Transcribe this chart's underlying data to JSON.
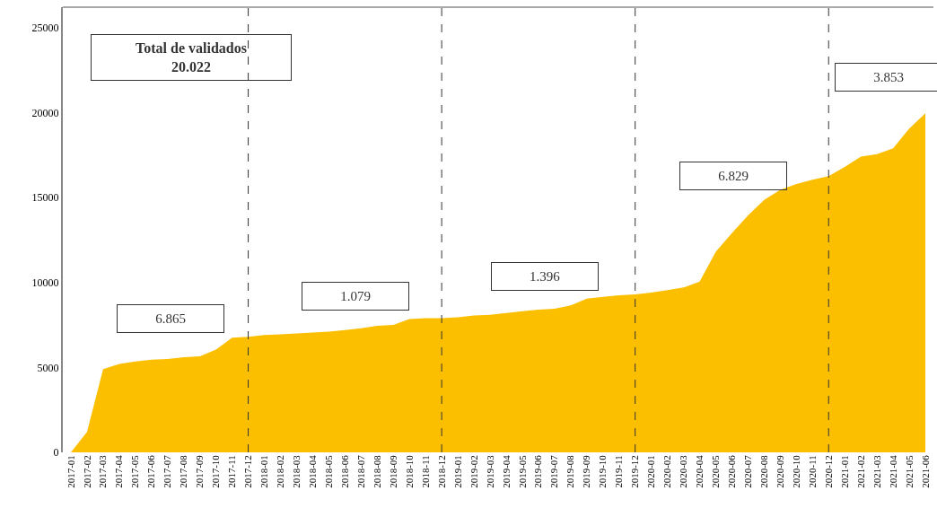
{
  "chart_data": {
    "type": "area",
    "categories": [
      "2017-01",
      "2017-02",
      "2017-03",
      "2017-04",
      "2017-05",
      "2017-06",
      "2017-07",
      "2017-08",
      "2017-09",
      "2017-10",
      "2017-11",
      "2017-12",
      "2018-01",
      "2018-02",
      "2018-03",
      "2018-04",
      "2018-05",
      "2018-06",
      "2018-07",
      "2018-08",
      "2018-09",
      "2018-10",
      "2018-11",
      "2018-12",
      "2019-01",
      "2019-02",
      "2019-03",
      "2019-04",
      "2019-05",
      "2019-06",
      "2019-07",
      "2019-08",
      "2019-09",
      "2019-10",
      "2019-11",
      "2019-12",
      "2020-01",
      "2020-02",
      "2020-03",
      "2020-04",
      "2020-05",
      "2020-06",
      "2020-07",
      "2020-08",
      "2020-09",
      "2020-10",
      "2020-11",
      "2020-12",
      "2021-01",
      "2021-02",
      "2021-03",
      "2021-04",
      "2021-05",
      "2021-06"
    ],
    "series": [
      {
        "color": "#fbbf00",
        "values": [
          0,
          1200,
          4900,
          5200,
          5350,
          5450,
          5500,
          5600,
          5650,
          6050,
          6750,
          6800,
          6900,
          6950,
          7000,
          7050,
          7100,
          7200,
          7300,
          7450,
          7500,
          7850,
          7900,
          7900,
          7950,
          8050,
          8100,
          8200,
          8300,
          8400,
          8450,
          8650,
          9050,
          9150,
          9250,
          9300,
          9400,
          9550,
          9700,
          10050,
          11800,
          12900,
          13950,
          14850,
          15450,
          15800,
          16050,
          16250,
          16800,
          17400,
          17550,
          17900,
          19050,
          19950
        ]
      }
    ],
    "ylim": [
      0,
      26200
    ],
    "yticks": [
      0,
      5000,
      10000,
      15000,
      20000,
      25000
    ],
    "grid": false,
    "ref_lines": [
      {
        "axis": "x",
        "value": "2017-12",
        "line_style": "dashed",
        "color": "#333333"
      },
      {
        "axis": "x",
        "value": "2018-12",
        "line_style": "dashed",
        "color": "#333333"
      },
      {
        "axis": "x",
        "value": "2019-12",
        "line_style": "dashed",
        "color": "#333333"
      },
      {
        "axis": "x",
        "value": "2020-12",
        "line_style": "dashed",
        "color": "#333333"
      }
    ],
    "annotations": [
      "Total de validados\n20.022",
      "6.865",
      "1.079",
      "1.396",
      "6.829",
      "3.853"
    ]
  }
}
